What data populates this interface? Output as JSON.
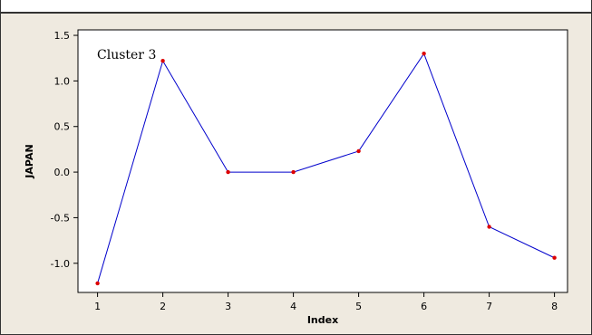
{
  "chart_data": {
    "type": "line",
    "x": [
      1,
      2,
      3,
      4,
      5,
      6,
      7,
      8
    ],
    "series": [
      {
        "values": [
          -1.22,
          1.22,
          0.0,
          0.0,
          0.23,
          1.3,
          -0.6,
          -0.94
        ]
      }
    ],
    "xlabel": "Index",
    "ylabel": "JAPAN",
    "annotation": "Cluster 3",
    "xticks": [
      1,
      2,
      3,
      4,
      5,
      6,
      7,
      8
    ],
    "yticks": [
      1.5,
      1.0,
      0.5,
      0.0,
      -0.5,
      -1.0
    ],
    "ytick_labels": [
      "1.5",
      "1.0",
      "0.5",
      "0.0",
      "-0.5",
      "-1.0"
    ],
    "xlim": [
      0.7,
      8.2
    ],
    "ylim": [
      -1.32,
      1.56
    ],
    "grid": false,
    "colors": {
      "line": "#0000cc",
      "marker": "#dd0000",
      "background": "#efeae0",
      "plot_area": "#ffffff"
    }
  }
}
